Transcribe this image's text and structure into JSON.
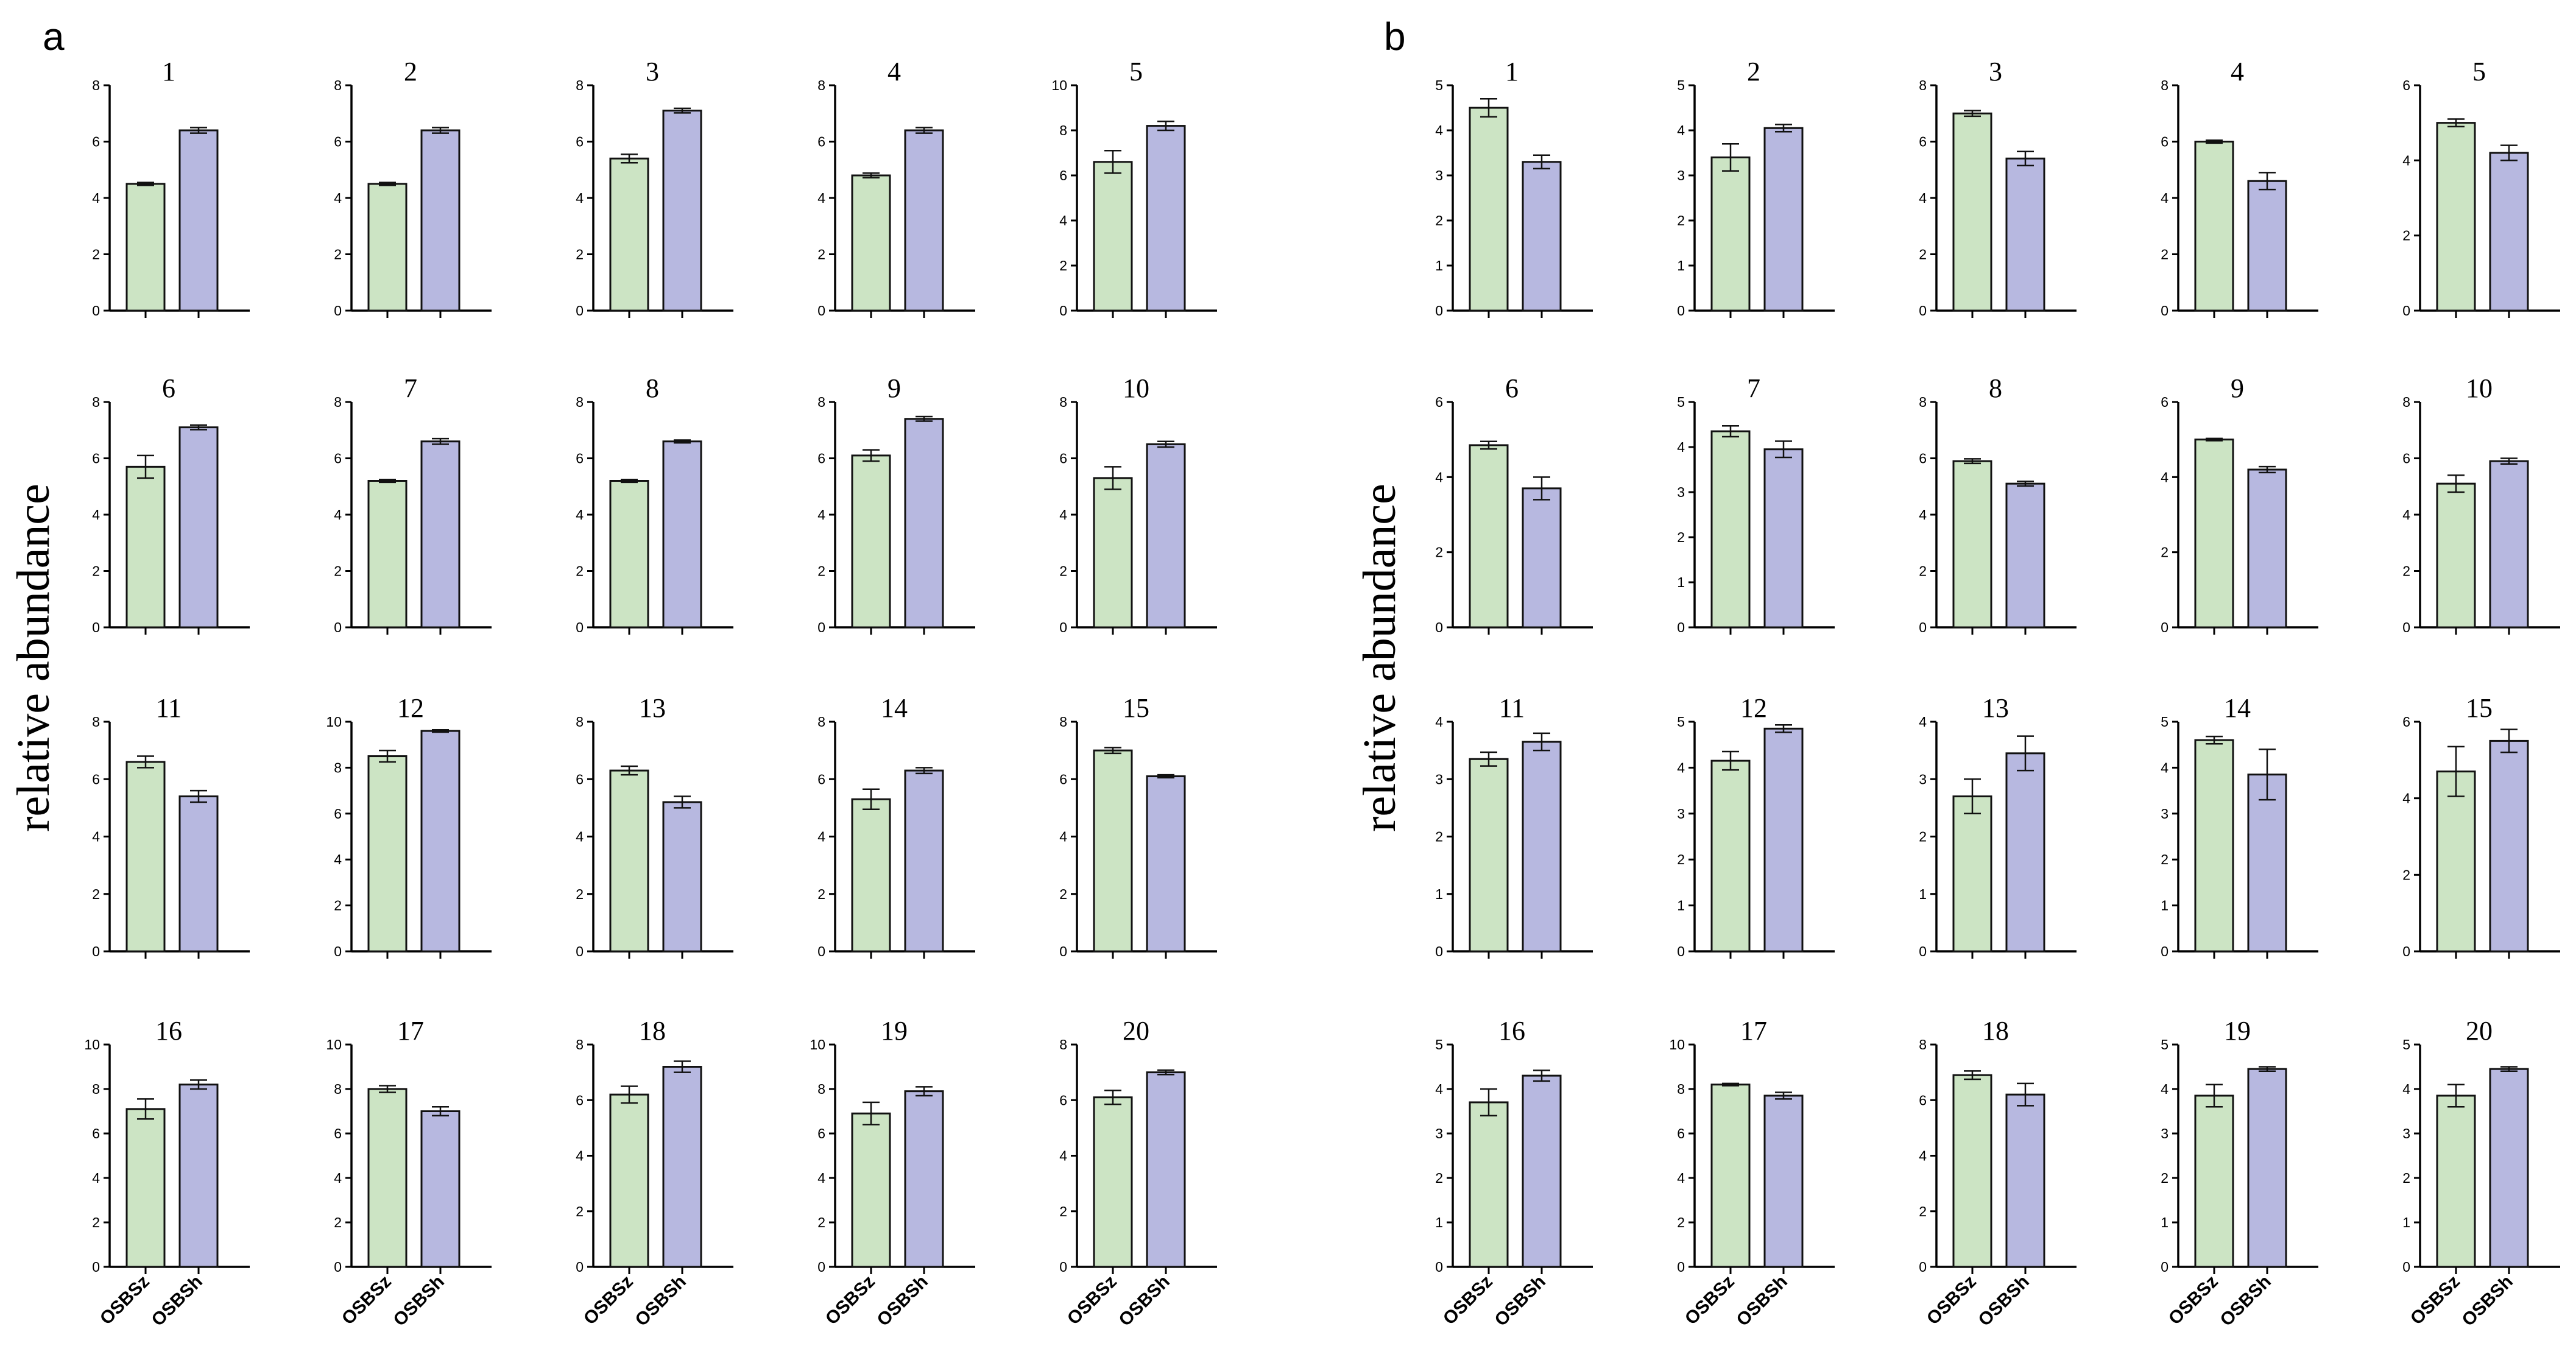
{
  "figure": {
    "ylabel": "relative abundance",
    "colors": {
      "OSBSz": "#cce4c4",
      "OSBSh": "#b7b8e0",
      "outline": "#111111"
    }
  },
  "chart_data": [
    {
      "type": "bar",
      "panel": "a",
      "categories": [
        "OSBSz",
        "OSBSh"
      ],
      "subplots": [
        {
          "title": "1",
          "ylim": [
            0,
            8
          ],
          "yticks": [
            0,
            2,
            4,
            6,
            8
          ],
          "values": [
            4.5,
            6.4
          ],
          "errors": [
            0.05,
            0.1
          ]
        },
        {
          "title": "2",
          "ylim": [
            0,
            8
          ],
          "yticks": [
            0,
            2,
            4,
            6,
            8
          ],
          "values": [
            4.5,
            6.4
          ],
          "errors": [
            0.05,
            0.1
          ]
        },
        {
          "title": "3",
          "ylim": [
            0,
            8
          ],
          "yticks": [
            0,
            2,
            4,
            6,
            8
          ],
          "values": [
            5.4,
            7.1
          ],
          "errors": [
            0.15,
            0.08
          ]
        },
        {
          "title": "4",
          "ylim": [
            0,
            8
          ],
          "yticks": [
            0,
            2,
            4,
            6,
            8
          ],
          "values": [
            4.8,
            6.4
          ],
          "errors": [
            0.08,
            0.1
          ]
        },
        {
          "title": "5",
          "ylim": [
            0,
            10
          ],
          "yticks": [
            0,
            2,
            4,
            6,
            8,
            10
          ],
          "values": [
            6.6,
            8.2
          ],
          "errors": [
            0.5,
            0.2
          ]
        },
        {
          "title": "6",
          "ylim": [
            0,
            8
          ],
          "yticks": [
            0,
            2,
            4,
            6,
            8
          ],
          "values": [
            5.7,
            7.1
          ],
          "errors": [
            0.4,
            0.08
          ]
        },
        {
          "title": "7",
          "ylim": [
            0,
            8
          ],
          "yticks": [
            0,
            2,
            4,
            6,
            8
          ],
          "values": [
            5.2,
            6.6
          ],
          "errors": [
            0.05,
            0.1
          ]
        },
        {
          "title": "8",
          "ylim": [
            0,
            8
          ],
          "yticks": [
            0,
            2,
            4,
            6,
            8
          ],
          "values": [
            5.2,
            6.6
          ],
          "errors": [
            0.05,
            0.05
          ]
        },
        {
          "title": "9",
          "ylim": [
            0,
            8
          ],
          "yticks": [
            0,
            2,
            4,
            6,
            8
          ],
          "values": [
            6.1,
            7.4
          ],
          "errors": [
            0.2,
            0.08
          ]
        },
        {
          "title": "10",
          "ylim": [
            0,
            8
          ],
          "yticks": [
            0,
            2,
            4,
            6,
            8
          ],
          "values": [
            5.3,
            6.5
          ],
          "errors": [
            0.4,
            0.1
          ]
        },
        {
          "title": "11",
          "ylim": [
            0,
            8
          ],
          "yticks": [
            0,
            2,
            4,
            6,
            8
          ],
          "values": [
            6.6,
            5.4
          ],
          "errors": [
            0.2,
            0.2
          ]
        },
        {
          "title": "12",
          "ylim": [
            0,
            10
          ],
          "yticks": [
            0,
            2,
            4,
            6,
            8,
            10
          ],
          "values": [
            8.5,
            9.6
          ],
          "errors": [
            0.25,
            0.05
          ]
        },
        {
          "title": "13",
          "ylim": [
            0,
            8
          ],
          "yticks": [
            0,
            2,
            4,
            6,
            8
          ],
          "values": [
            6.3,
            5.2
          ],
          "errors": [
            0.15,
            0.2
          ]
        },
        {
          "title": "14",
          "ylim": [
            0,
            8
          ],
          "yticks": [
            0,
            2,
            4,
            6,
            8
          ],
          "values": [
            5.3,
            6.3
          ],
          "errors": [
            0.35,
            0.1
          ]
        },
        {
          "title": "15",
          "ylim": [
            0,
            8
          ],
          "yticks": [
            0,
            2,
            4,
            6,
            8
          ],
          "values": [
            7.0,
            6.1
          ],
          "errors": [
            0.1,
            0.05
          ]
        },
        {
          "title": "16",
          "ylim": [
            0,
            10
          ],
          "yticks": [
            0,
            2,
            4,
            6,
            8,
            10
          ],
          "values": [
            7.1,
            8.2
          ],
          "errors": [
            0.45,
            0.2
          ]
        },
        {
          "title": "17",
          "ylim": [
            0,
            10
          ],
          "yticks": [
            0,
            2,
            4,
            6,
            8,
            10
          ],
          "values": [
            8.0,
            7.0
          ],
          "errors": [
            0.15,
            0.2
          ]
        },
        {
          "title": "18",
          "ylim": [
            0,
            8
          ],
          "yticks": [
            0,
            2,
            4,
            6,
            8
          ],
          "values": [
            6.2,
            7.2
          ],
          "errors": [
            0.3,
            0.2
          ]
        },
        {
          "title": "19",
          "ylim": [
            0,
            10
          ],
          "yticks": [
            0,
            2,
            4,
            6,
            8,
            10
          ],
          "values": [
            6.9,
            7.9
          ],
          "errors": [
            0.5,
            0.2
          ]
        },
        {
          "title": "20",
          "ylim": [
            0,
            8
          ],
          "yticks": [
            0,
            2,
            4,
            6,
            8
          ],
          "values": [
            6.1,
            7.0
          ],
          "errors": [
            0.25,
            0.08
          ]
        }
      ]
    },
    {
      "type": "bar",
      "panel": "b",
      "categories": [
        "OSBSz",
        "OSBSh"
      ],
      "subplots": [
        {
          "title": "1",
          "ylim": [
            0,
            5
          ],
          "yticks": [
            0,
            1,
            2,
            3,
            4,
            5
          ],
          "values": [
            4.5,
            3.3
          ],
          "errors": [
            0.2,
            0.15
          ]
        },
        {
          "title": "2",
          "ylim": [
            0,
            5
          ],
          "yticks": [
            0,
            1,
            2,
            3,
            4,
            5
          ],
          "values": [
            3.4,
            4.05
          ],
          "errors": [
            0.3,
            0.08
          ]
        },
        {
          "title": "3",
          "ylim": [
            0,
            8
          ],
          "yticks": [
            0,
            2,
            4,
            6,
            8
          ],
          "values": [
            7.0,
            5.4
          ],
          "errors": [
            0.1,
            0.25
          ]
        },
        {
          "title": "4",
          "ylim": [
            0,
            8
          ],
          "yticks": [
            0,
            2,
            4,
            6,
            8
          ],
          "values": [
            6.0,
            4.6
          ],
          "errors": [
            0.05,
            0.3
          ]
        },
        {
          "title": "5",
          "ylim": [
            0,
            6
          ],
          "yticks": [
            0,
            2,
            4,
            6
          ],
          "values": [
            5.0,
            4.2
          ],
          "errors": [
            0.1,
            0.2
          ]
        },
        {
          "title": "6",
          "ylim": [
            0,
            6
          ],
          "yticks": [
            0,
            2,
            4,
            6
          ],
          "values": [
            4.85,
            3.7
          ],
          "errors": [
            0.1,
            0.3
          ]
        },
        {
          "title": "7",
          "ylim": [
            0,
            5
          ],
          "yticks": [
            0,
            1,
            2,
            3,
            4,
            5
          ],
          "values": [
            4.35,
            3.95
          ],
          "errors": [
            0.12,
            0.18
          ]
        },
        {
          "title": "8",
          "ylim": [
            0,
            8
          ],
          "yticks": [
            0,
            2,
            4,
            6,
            8
          ],
          "values": [
            5.9,
            5.1
          ],
          "errors": [
            0.08,
            0.08
          ]
        },
        {
          "title": "9",
          "ylim": [
            0,
            6
          ],
          "yticks": [
            0,
            2,
            4,
            6
          ],
          "values": [
            5.0,
            4.2
          ],
          "errors": [
            0.03,
            0.08
          ]
        },
        {
          "title": "10",
          "ylim": [
            0,
            8
          ],
          "yticks": [
            0,
            2,
            4,
            6,
            8
          ],
          "values": [
            5.1,
            5.9
          ],
          "errors": [
            0.3,
            0.1
          ]
        },
        {
          "title": "11",
          "ylim": [
            0,
            4
          ],
          "yticks": [
            0,
            1,
            2,
            3,
            4
          ],
          "values": [
            3.35,
            3.65
          ],
          "errors": [
            0.12,
            0.15
          ]
        },
        {
          "title": "12",
          "ylim": [
            0,
            5
          ],
          "yticks": [
            0,
            1,
            2,
            3,
            4,
            5
          ],
          "values": [
            4.15,
            4.85
          ],
          "errors": [
            0.2,
            0.08
          ]
        },
        {
          "title": "13",
          "ylim": [
            0,
            4
          ],
          "yticks": [
            0,
            1,
            2,
            3,
            4
          ],
          "values": [
            2.7,
            3.45
          ],
          "errors": [
            0.3,
            0.3
          ]
        },
        {
          "title": "14",
          "ylim": [
            0,
            5
          ],
          "yticks": [
            0,
            1,
            2,
            3,
            4,
            5
          ],
          "values": [
            4.6,
            3.85
          ],
          "errors": [
            0.08,
            0.55
          ]
        },
        {
          "title": "15",
          "ylim": [
            0,
            6
          ],
          "yticks": [
            0,
            2,
            4,
            6
          ],
          "values": [
            4.7,
            5.5
          ],
          "errors": [
            0.65,
            0.3
          ]
        },
        {
          "title": "16",
          "ylim": [
            0,
            5
          ],
          "yticks": [
            0,
            1,
            2,
            3,
            4,
            5
          ],
          "values": [
            3.7,
            4.3
          ],
          "errors": [
            0.3,
            0.12
          ]
        },
        {
          "title": "17",
          "ylim": [
            0,
            10
          ],
          "yticks": [
            0,
            2,
            4,
            6,
            8,
            10
          ],
          "values": [
            8.2,
            7.7
          ],
          "errors": [
            0.05,
            0.15
          ]
        },
        {
          "title": "18",
          "ylim": [
            0,
            8
          ],
          "yticks": [
            0,
            2,
            4,
            6,
            8
          ],
          "values": [
            6.9,
            6.2
          ],
          "errors": [
            0.15,
            0.4
          ]
        },
        {
          "title": "19",
          "ylim": [
            0,
            5
          ],
          "yticks": [
            0,
            1,
            2,
            3,
            4,
            5
          ],
          "values": [
            3.85,
            4.45
          ],
          "errors": [
            0.25,
            0.05
          ]
        },
        {
          "title": "20",
          "ylim": [
            0,
            5
          ],
          "yticks": [
            0,
            1,
            2,
            3,
            4,
            5
          ],
          "values": [
            3.85,
            4.45
          ],
          "errors": [
            0.25,
            0.05
          ]
        }
      ]
    }
  ]
}
